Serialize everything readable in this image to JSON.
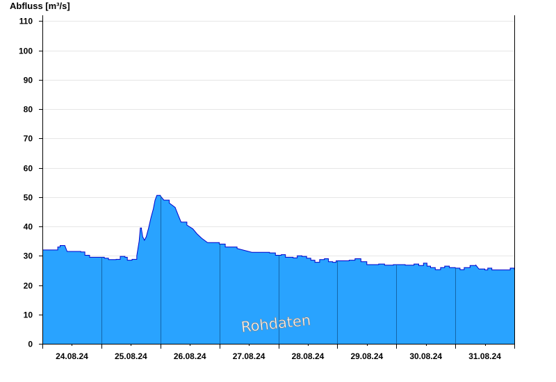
{
  "chart_data": {
    "type": "area",
    "ylabel": "Abfluss [m³/s]",
    "watermark": "Rohdaten",
    "ylim": [
      0,
      112
    ],
    "yticks": [
      0,
      10,
      20,
      30,
      40,
      50,
      60,
      70,
      80,
      90,
      100,
      110
    ],
    "xlabels": [
      "24.08.24",
      "25.08.24",
      "26.08.24",
      "27.08.24",
      "28.08.24",
      "29.08.24",
      "30.08.24",
      "31.08.24"
    ],
    "x_unit": "days since 24.08.24 00:00",
    "grid": "horizontal",
    "fill_color": "#29a3ff",
    "line_color": "#0000cc",
    "series": [
      {
        "values": [
          [
            0.0,
            32.0
          ],
          [
            0.24,
            32.0
          ],
          [
            0.26,
            33.0
          ],
          [
            0.3,
            33.5
          ],
          [
            0.38,
            33.5
          ],
          [
            0.42,
            31.5
          ],
          [
            0.65,
            31.3
          ],
          [
            0.72,
            30.2
          ],
          [
            0.8,
            29.5
          ],
          [
            1.05,
            29.2
          ],
          [
            1.12,
            28.7
          ],
          [
            1.25,
            28.8
          ],
          [
            1.32,
            29.8
          ],
          [
            1.4,
            29.5
          ],
          [
            1.44,
            28.5
          ],
          [
            1.52,
            28.8
          ],
          [
            1.6,
            30.0
          ],
          [
            1.64,
            35.0
          ],
          [
            1.66,
            39.5
          ],
          [
            1.68,
            39.0
          ],
          [
            1.7,
            36.5
          ],
          [
            1.73,
            35.3
          ],
          [
            1.76,
            36.5
          ],
          [
            1.8,
            39.5
          ],
          [
            1.84,
            43.0
          ],
          [
            1.88,
            46.0
          ],
          [
            1.91,
            49.0
          ],
          [
            1.94,
            50.6
          ],
          [
            2.0,
            50.4
          ],
          [
            2.06,
            49.0
          ],
          [
            2.15,
            48.0
          ],
          [
            2.25,
            46.5
          ],
          [
            2.3,
            44.0
          ],
          [
            2.35,
            41.5
          ],
          [
            2.45,
            40.5
          ],
          [
            2.55,
            39.2
          ],
          [
            2.62,
            37.5
          ],
          [
            2.7,
            36.0
          ],
          [
            2.8,
            34.5
          ],
          [
            3.0,
            34.0
          ],
          [
            3.1,
            33.0
          ],
          [
            3.3,
            32.5
          ],
          [
            3.55,
            31.2
          ],
          [
            3.85,
            31.0
          ],
          [
            3.95,
            30.2
          ],
          [
            4.05,
            30.4
          ],
          [
            4.12,
            29.5
          ],
          [
            4.25,
            29.3
          ],
          [
            4.32,
            30.0
          ],
          [
            4.4,
            29.8
          ],
          [
            4.48,
            29.2
          ],
          [
            4.55,
            28.5
          ],
          [
            4.62,
            27.8
          ],
          [
            4.7,
            28.7
          ],
          [
            4.78,
            29.0
          ],
          [
            4.85,
            28.0
          ],
          [
            4.92,
            27.8
          ],
          [
            4.98,
            28.3
          ],
          [
            5.2,
            28.5
          ],
          [
            5.3,
            29.0
          ],
          [
            5.4,
            28.0
          ],
          [
            5.5,
            27.0
          ],
          [
            5.7,
            27.2
          ],
          [
            5.8,
            26.8
          ],
          [
            5.95,
            27.0
          ],
          [
            6.15,
            26.8
          ],
          [
            6.3,
            27.2
          ],
          [
            6.38,
            26.7
          ],
          [
            6.46,
            27.5
          ],
          [
            6.52,
            26.5
          ],
          [
            6.58,
            26.0
          ],
          [
            6.66,
            25.3
          ],
          [
            6.75,
            26.0
          ],
          [
            6.82,
            26.5
          ],
          [
            6.9,
            26.0
          ],
          [
            7.0,
            25.8
          ],
          [
            7.08,
            25.3
          ],
          [
            7.15,
            26.0
          ],
          [
            7.25,
            26.7
          ],
          [
            7.35,
            26.8
          ],
          [
            7.4,
            25.5
          ],
          [
            7.5,
            25.2
          ],
          [
            7.55,
            25.8
          ],
          [
            7.62,
            25.2
          ],
          [
            7.88,
            25.2
          ],
          [
            7.93,
            25.8
          ],
          [
            8.0,
            25.3
          ]
        ]
      }
    ]
  }
}
